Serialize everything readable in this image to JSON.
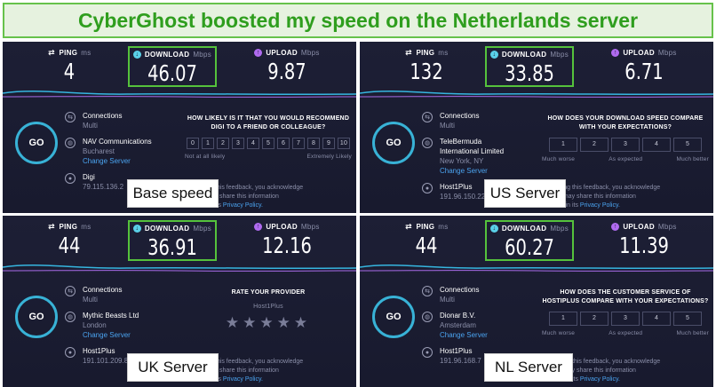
{
  "banner": "CyberGhost boosted my speed on the Netherlands server",
  "panels": [
    {
      "ping": "4",
      "download": "46.07",
      "upload": "9.87",
      "connections": "Connections",
      "conn_type": "Multi",
      "isp": "NAV Communications",
      "isp2": "",
      "location": "Bucharest",
      "change_server": "Change Server",
      "host": "Digi",
      "ip": "79.115.136.2",
      "survey_title": "HOW LIKELY IS IT THAT YOU WOULD RECOMMEND DIGI TO A FRIEND OR COLLEAGUE?",
      "scale": [
        "0",
        "1",
        "2",
        "3",
        "4",
        "5",
        "6",
        "7",
        "8",
        "9",
        "10"
      ],
      "scale_low": "Not at all likely",
      "scale_mid": "",
      "scale_high": "Extremely Likely",
      "label": "Base speed"
    },
    {
      "ping": "132",
      "download": "33.85",
      "upload": "6.71",
      "connections": "Connections",
      "conn_type": "Multi",
      "isp": "TeleBermuda",
      "isp2": "International Limited",
      "location": "New York, NY",
      "change_server": "Change Server",
      "host": "Host1Plus",
      "ip": "191.96.150.22",
      "survey_title": "HOW DOES YOUR DOWNLOAD SPEED COMPARE WITH YOUR EXPECTATIONS?",
      "scale": [
        "1",
        "2",
        "3",
        "4",
        "5"
      ],
      "scale_low": "Much worse",
      "scale_mid": "As expected",
      "scale_high": "Much better",
      "label": "US Server"
    },
    {
      "ping": "44",
      "download": "36.91",
      "upload": "12.16",
      "connections": "Connections",
      "conn_type": "Multi",
      "isp": "Mythic Beasts Ltd",
      "isp2": "",
      "location": "London",
      "change_server": "Change Server",
      "host": "Host1Plus",
      "ip": "191.101.209.8",
      "survey_title": "RATE YOUR PROVIDER",
      "provider": "Host1Plus",
      "stars": "★★★★★",
      "label": "UK Server"
    },
    {
      "ping": "44",
      "download": "60.27",
      "upload": "11.39",
      "connections": "Connections",
      "conn_type": "Multi",
      "isp": "Dionar B.V.",
      "isp2": "",
      "location": "Amsterdam",
      "change_server": "Change Server",
      "host": "Host1Plus",
      "ip": "191.96.168.7",
      "survey_title": "HOW DOES THE CUSTOMER SERVICE OF HOSTIPLUS COMPARE WITH YOUR EXPECTATIONS?",
      "scale": [
        "1",
        "2",
        "3",
        "4",
        "5"
      ],
      "scale_low": "Much worse",
      "scale_mid": "As expected",
      "scale_high": "Much better",
      "label": "NL Server"
    }
  ],
  "common": {
    "ping_label": "PING",
    "ping_unit": "ms",
    "download_label": "DOWNLOAD",
    "download_unit": "Mbps",
    "upload_label": "UPLOAD",
    "upload_unit": "Mbps",
    "go": "GO",
    "feedback_1": "By submitting this feedback, you acknowledge",
    "feedback_2": "that Ookla may share this information",
    "feedback_3": "as set forth in its",
    "privacy": "Privacy Policy."
  },
  "colors": {
    "banner_green": "#2f9e1e",
    "highlight": "#55c23c",
    "panel_bg": "#1d1f35",
    "accent": "#38b2d6"
  }
}
